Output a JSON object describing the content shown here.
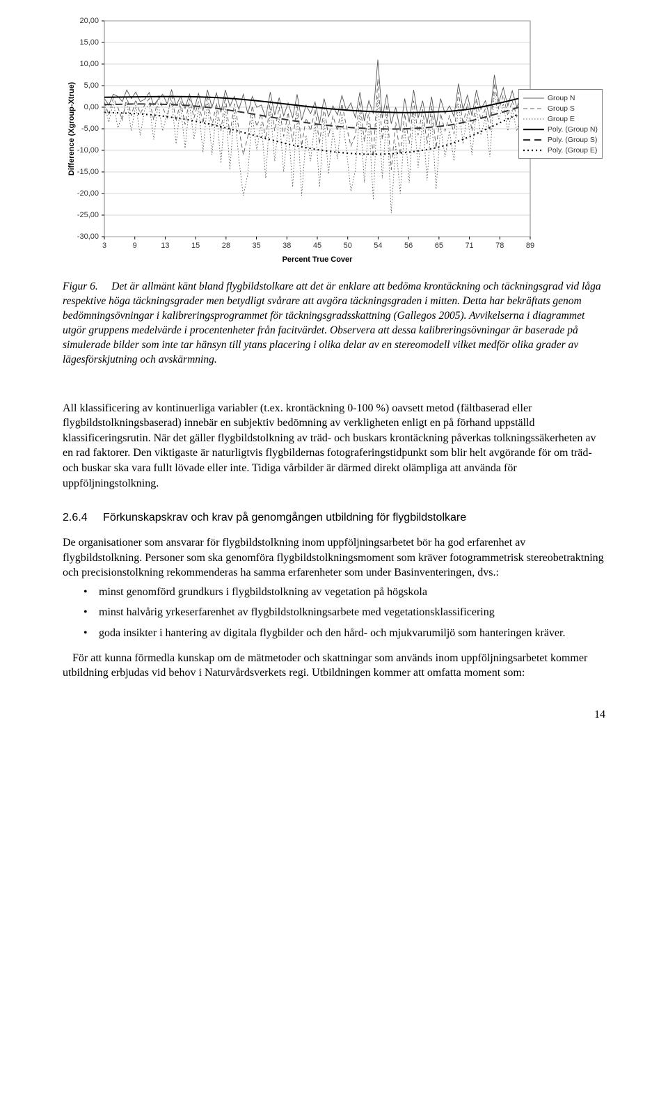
{
  "chart": {
    "type": "line",
    "ylabel": "Difference (Xgroup-Xtrue)",
    "xlabel": "Percent True Cover",
    "ylim": [
      -30,
      20
    ],
    "yticks": [
      -30,
      -25,
      -20,
      -15,
      -10,
      -5,
      0,
      5,
      10,
      15,
      20
    ],
    "ytick_labels": [
      "-30,00",
      "-25,00",
      "-20,00",
      "-15,00",
      "-10,00",
      "-5,00",
      "0,00",
      "5,00",
      "10,00",
      "15,00",
      "20,00"
    ],
    "xticks": [
      3,
      9,
      13,
      15,
      28,
      35,
      38,
      45,
      50,
      54,
      56,
      65,
      71,
      78,
      89
    ],
    "plot_bg": "#ffffff",
    "page_bg": "#ffffff",
    "axis_color": "#000000",
    "grid_color": "#b0b0b0",
    "label_fontsize": 11,
    "axis_title_fontsize": 11,
    "axis_title_weight": "bold",
    "line_stroke": "#555555",
    "line_width_jagged": 0.9,
    "line_width_poly": 2.0,
    "legend": [
      {
        "label": "Group N",
        "style": "solid-thin",
        "color": "#666666"
      },
      {
        "label": "Group S",
        "style": "dash-thin",
        "color": "#666666"
      },
      {
        "label": "Group E",
        "style": "dot-thin",
        "color": "#666666"
      },
      {
        "label": "Poly. (Group N)",
        "style": "solid-thick",
        "color": "#000000"
      },
      {
        "label": "Poly. (Group S)",
        "style": "dash-thick",
        "color": "#333333"
      },
      {
        "label": "Poly. (Group E)",
        "style": "dot-thick",
        "color": "#000000"
      }
    ],
    "series_N": [
      [
        0,
        2
      ],
      [
        6,
        0.5
      ],
      [
        12,
        3
      ],
      [
        18,
        2.5
      ],
      [
        24,
        1.3
      ],
      [
        30,
        4
      ],
      [
        36,
        2
      ],
      [
        42,
        3.5
      ],
      [
        48,
        1.3
      ],
      [
        54,
        1.8
      ],
      [
        60,
        3.4
      ],
      [
        66,
        0.5
      ],
      [
        72,
        1.8
      ],
      [
        78,
        3
      ],
      [
        84,
        0.8
      ],
      [
        90,
        4
      ],
      [
        96,
        0.4
      ],
      [
        102,
        2.5
      ],
      [
        108,
        -0.3
      ],
      [
        114,
        3
      ],
      [
        120,
        -0.6
      ],
      [
        126,
        3.2
      ],
      [
        132,
        -0.8
      ],
      [
        138,
        4
      ],
      [
        144,
        0
      ],
      [
        150,
        3.3
      ],
      [
        156,
        -1.2
      ],
      [
        162,
        4
      ],
      [
        168,
        0.2
      ],
      [
        174,
        2.5
      ],
      [
        180,
        -0.5
      ],
      [
        186,
        3
      ],
      [
        192,
        -1.5
      ],
      [
        198,
        2.5
      ],
      [
        204,
        0
      ],
      [
        210,
        0.5
      ],
      [
        216,
        -2.5
      ],
      [
        222,
        3.5
      ],
      [
        228,
        -1.8
      ],
      [
        234,
        2.2
      ],
      [
        240,
        -2
      ],
      [
        246,
        1
      ],
      [
        252,
        -2.5
      ],
      [
        258,
        3
      ],
      [
        264,
        -3
      ],
      [
        270,
        0.5
      ],
      [
        276,
        -1.5
      ],
      [
        282,
        1.2
      ],
      [
        288,
        -3.8
      ],
      [
        294,
        2
      ],
      [
        300,
        -2.2
      ],
      [
        306,
        0.3
      ],
      [
        312,
        -1.8
      ],
      [
        318,
        2.7
      ],
      [
        324,
        -0.8
      ],
      [
        330,
        1
      ],
      [
        336,
        -2.5
      ],
      [
        342,
        3.5
      ],
      [
        348,
        -3.2
      ],
      [
        354,
        1.5
      ],
      [
        360,
        -1.5
      ],
      [
        366,
        11
      ],
      [
        372,
        -2.5
      ],
      [
        378,
        3
      ],
      [
        384,
        -3.8
      ],
      [
        390,
        0
      ],
      [
        396,
        -5.5
      ],
      [
        402,
        2
      ],
      [
        408,
        -3.5
      ],
      [
        414,
        4
      ],
      [
        420,
        -2.5
      ],
      [
        426,
        1.5
      ],
      [
        432,
        -3.8
      ],
      [
        438,
        2.4
      ],
      [
        444,
        -4.5
      ],
      [
        450,
        2
      ],
      [
        456,
        -1.5
      ],
      [
        462,
        0.3
      ],
      [
        468,
        -2.2
      ],
      [
        474,
        5.5
      ],
      [
        480,
        -0.5
      ],
      [
        486,
        2.8
      ],
      [
        492,
        -2
      ],
      [
        498,
        4
      ],
      [
        504,
        -0.5
      ],
      [
        510,
        1.5
      ],
      [
        516,
        -2.5
      ],
      [
        522,
        7.5
      ],
      [
        528,
        1.2
      ],
      [
        534,
        4.5
      ],
      [
        540,
        0.3
      ],
      [
        546,
        3.8
      ],
      [
        552,
        0
      ],
      [
        558,
        2.5
      ],
      [
        564,
        0.8
      ],
      [
        570,
        1.6
      ]
    ],
    "series_S": [
      [
        0,
        1.2
      ],
      [
        6,
        -1.8
      ],
      [
        12,
        2.2
      ],
      [
        18,
        0
      ],
      [
        24,
        -3
      ],
      [
        30,
        2.5
      ],
      [
        36,
        -2
      ],
      [
        42,
        1.8
      ],
      [
        48,
        -1.5
      ],
      [
        54,
        0.5
      ],
      [
        60,
        2
      ],
      [
        66,
        -3
      ],
      [
        72,
        2.5
      ],
      [
        78,
        0
      ],
      [
        84,
        -2.5
      ],
      [
        90,
        3
      ],
      [
        96,
        -3.3
      ],
      [
        102,
        1.5
      ],
      [
        108,
        -4
      ],
      [
        114,
        2
      ],
      [
        120,
        -2.5
      ],
      [
        126,
        1.3
      ],
      [
        132,
        -3.8
      ],
      [
        138,
        2.8
      ],
      [
        144,
        -4.5
      ],
      [
        150,
        1
      ],
      [
        156,
        -5.5
      ],
      [
        162,
        2.5
      ],
      [
        168,
        -6.5
      ],
      [
        174,
        0.8
      ],
      [
        180,
        -5
      ],
      [
        186,
        -11
      ],
      [
        192,
        -6.8
      ],
      [
        198,
        0.3
      ],
      [
        204,
        -4.5
      ],
      [
        210,
        -1.5
      ],
      [
        216,
        -7.5
      ],
      [
        222,
        1.5
      ],
      [
        228,
        -5.5
      ],
      [
        234,
        0
      ],
      [
        240,
        -6.8
      ],
      [
        246,
        -1.2
      ],
      [
        252,
        -8
      ],
      [
        258,
        0.8
      ],
      [
        264,
        -9
      ],
      [
        270,
        -2.5
      ],
      [
        276,
        -5.5
      ],
      [
        282,
        -0.5
      ],
      [
        288,
        -8.5
      ],
      [
        294,
        0
      ],
      [
        300,
        -6.8
      ],
      [
        306,
        -2
      ],
      [
        312,
        -5.5
      ],
      [
        318,
        0.8
      ],
      [
        324,
        -4.5
      ],
      [
        330,
        -9
      ],
      [
        336,
        -6.5
      ],
      [
        342,
        1.5
      ],
      [
        348,
        -8
      ],
      [
        354,
        -0.8
      ],
      [
        360,
        -11.5
      ],
      [
        366,
        6.5
      ],
      [
        372,
        -7.5
      ],
      [
        378,
        0.7
      ],
      [
        384,
        -14.5
      ],
      [
        390,
        -3.5
      ],
      [
        396,
        -11
      ],
      [
        402,
        -1.5
      ],
      [
        408,
        -8.5
      ],
      [
        414,
        1.5
      ],
      [
        420,
        -6.5
      ],
      [
        426,
        -0.5
      ],
      [
        432,
        -8.5
      ],
      [
        438,
        0.3
      ],
      [
        444,
        -9.5
      ],
      [
        450,
        -1.5
      ],
      [
        456,
        -5.5
      ],
      [
        462,
        -2
      ],
      [
        468,
        -6.2
      ],
      [
        474,
        3.5
      ],
      [
        480,
        -4
      ],
      [
        486,
        0.8
      ],
      [
        492,
        -5.5
      ],
      [
        498,
        2
      ],
      [
        504,
        -3
      ],
      [
        510,
        -0.3
      ],
      [
        516,
        -5.5
      ],
      [
        522,
        5.5
      ],
      [
        528,
        -0.5
      ],
      [
        534,
        2.8
      ],
      [
        540,
        -2
      ],
      [
        546,
        1.5
      ],
      [
        552,
        -2.2
      ],
      [
        558,
        0.8
      ],
      [
        564,
        -0.7
      ],
      [
        570,
        0.5
      ]
    ],
    "series_E": [
      [
        0,
        0.7
      ],
      [
        6,
        -3.5
      ],
      [
        12,
        1.2
      ],
      [
        18,
        -4.8
      ],
      [
        24,
        -2
      ],
      [
        30,
        1.2
      ],
      [
        36,
        -5.5
      ],
      [
        42,
        0.5
      ],
      [
        48,
        -6.5
      ],
      [
        54,
        -0.5
      ],
      [
        60,
        0.8
      ],
      [
        66,
        -7.5
      ],
      [
        72,
        1
      ],
      [
        78,
        -5.5
      ],
      [
        84,
        -1.5
      ],
      [
        90,
        1.5
      ],
      [
        96,
        -8.5
      ],
      [
        102,
        0.3
      ],
      [
        108,
        -9.5
      ],
      [
        114,
        0.8
      ],
      [
        120,
        -7.5
      ],
      [
        126,
        0
      ],
      [
        132,
        -10.5
      ],
      [
        138,
        1.3
      ],
      [
        144,
        -11
      ],
      [
        150,
        -0.7
      ],
      [
        156,
        -13
      ],
      [
        162,
        0.8
      ],
      [
        168,
        -14.5
      ],
      [
        174,
        -0.4
      ],
      [
        180,
        -12
      ],
      [
        186,
        -20.5
      ],
      [
        192,
        -15.5
      ],
      [
        198,
        -1.8
      ],
      [
        204,
        -10
      ],
      [
        210,
        -3.5
      ],
      [
        216,
        -16.5
      ],
      [
        222,
        -0.2
      ],
      [
        228,
        -12.5
      ],
      [
        234,
        -2.2
      ],
      [
        240,
        -15
      ],
      [
        246,
        -4
      ],
      [
        252,
        -18.5
      ],
      [
        258,
        -1.3
      ],
      [
        264,
        -20.5
      ],
      [
        270,
        -6.5
      ],
      [
        276,
        -12.5
      ],
      [
        282,
        -3.2
      ],
      [
        288,
        -18.5
      ],
      [
        294,
        -2.5
      ],
      [
        300,
        -15.5
      ],
      [
        306,
        -5.5
      ],
      [
        312,
        -12
      ],
      [
        318,
        -1.5
      ],
      [
        324,
        -10
      ],
      [
        330,
        -19.5
      ],
      [
        336,
        -14.5
      ],
      [
        342,
        -0.5
      ],
      [
        348,
        -17.5
      ],
      [
        354,
        -3.5
      ],
      [
        360,
        -21.5
      ],
      [
        366,
        2.5
      ],
      [
        372,
        -16.5
      ],
      [
        378,
        -1.5
      ],
      [
        384,
        -24.5
      ],
      [
        390,
        -8.5
      ],
      [
        396,
        -20
      ],
      [
        402,
        -4.5
      ],
      [
        408,
        -17.5
      ],
      [
        414,
        -1
      ],
      [
        420,
        -14
      ],
      [
        426,
        -3
      ],
      [
        432,
        -17
      ],
      [
        438,
        -2
      ],
      [
        444,
        -19
      ],
      [
        450,
        -4.5
      ],
      [
        456,
        -11.5
      ],
      [
        462,
        -5.5
      ],
      [
        468,
        -12.5
      ],
      [
        474,
        1
      ],
      [
        480,
        -8.5
      ],
      [
        486,
        -1.5
      ],
      [
        492,
        -11
      ],
      [
        498,
        -0.3
      ],
      [
        504,
        -6.5
      ],
      [
        510,
        -2.5
      ],
      [
        516,
        -11.5
      ],
      [
        522,
        3.5
      ],
      [
        528,
        -3
      ],
      [
        534,
        0.8
      ],
      [
        540,
        -5.5
      ],
      [
        546,
        -0.5
      ],
      [
        552,
        -5.5
      ],
      [
        558,
        -1.5
      ],
      [
        564,
        -3
      ],
      [
        570,
        -0.3
      ]
    ],
    "poly_N": [
      [
        0,
        2.3
      ],
      [
        50,
        2.4
      ],
      [
        100,
        2.5
      ],
      [
        150,
        2.3
      ],
      [
        200,
        1.6
      ],
      [
        250,
        0.6
      ],
      [
        300,
        -0.4
      ],
      [
        350,
        -1
      ],
      [
        400,
        -1.3
      ],
      [
        450,
        -1.1
      ],
      [
        480,
        -0.7
      ],
      [
        510,
        0.2
      ],
      [
        540,
        1.4
      ],
      [
        570,
        2.7
      ]
    ],
    "poly_S": [
      [
        0,
        0.6
      ],
      [
        50,
        0.8
      ],
      [
        100,
        0.6
      ],
      [
        150,
        -0.2
      ],
      [
        200,
        -1.6
      ],
      [
        250,
        -3.1
      ],
      [
        300,
        -4.3
      ],
      [
        350,
        -5
      ],
      [
        400,
        -5.1
      ],
      [
        450,
        -4.5
      ],
      [
        480,
        -3.6
      ],
      [
        510,
        -2.3
      ],
      [
        540,
        -0.8
      ],
      [
        570,
        0.8
      ]
    ],
    "poly_E": [
      [
        0,
        -1.2
      ],
      [
        50,
        -1.5
      ],
      [
        100,
        -2.5
      ],
      [
        150,
        -4.2
      ],
      [
        200,
        -6.5
      ],
      [
        250,
        -8.8
      ],
      [
        300,
        -10.3
      ],
      [
        350,
        -11
      ],
      [
        400,
        -10.7
      ],
      [
        450,
        -9.3
      ],
      [
        480,
        -7.5
      ],
      [
        510,
        -5.2
      ],
      [
        540,
        -2.7
      ],
      [
        570,
        -0.4
      ]
    ]
  },
  "caption_label": "Figur 6.",
  "caption_text": "Det är allmänt känt bland flygbildstolkare att det är enklare att bedöma krontäckning och täckningsgrad vid låga respektive höga täckningsgrader men betydligt svårare att avgöra täckningsgraden i mitten. Detta har bekräftats genom bedömningsövningar i kalibreringsprogrammet för täckningsgrads­skattning (Gallegos 2005). Avvikelserna i diagrammet utgör gruppens medelvärde i procentenheter från facitvärdet. Observera att dessa kalibreringsövningar är baserade på simulerade bilder som inte tar hänsyn till ytans placering i olika delar av en stereomodell vilket medför olika grader av lägesförskjutning och avskärmning.",
  "body1": "All klassificering av kontinuerliga variabler (t.ex. krontäckning 0-100 %) oavsett metod (fältbaserad eller flygbildstolkningsbaserad) innebär en subjektiv bedömning av verkligheten enligt en på förhand uppställd klassificeringsrutin. När det gäller flygbildstolkning av träd- och buskars krontäckning påverkas tolkningssäkerheten av en rad faktorer. Den viktigaste är naturligtvis flygbildernas fotograferingstidpunkt som blir helt avgörande för om träd- och buskar ska vara fullt lövade eller inte. Tidiga vårbilder är därmed direkt olämpliga att använda för uppföljningstolkning.",
  "section_num": "2.6.4",
  "section_title": "Förkunskapskrav och krav på genomgången utbildning för flygbildstolkare",
  "body2": "De organisationer som ansvarar för flygbildstolkning inom uppföljningsarbetet bör ha god erfarenhet av flygbildstolkning. Personer som ska genomföra flygbildstolkningsmoment som kräver fotogrammetrisk stereobetraktning och precisionstolkning rekommenderas ha samma erfarenheter som under Basinventeringen, dvs.:",
  "bullets": [
    "minst genomförd grundkurs i flygbildstolkning av vegetation på högskola",
    "minst halvårig yrkeserfarenhet av flygbildstolkningsarbete med vegetationsklassificering",
    "goda insikter i hantering av digitala flygbilder och den hård- och mjukvarumiljö som hanteringen kräver."
  ],
  "body3": "För att kunna förmedla kunskap om de mätmetoder och skattningar som används inom uppföljningsarbetet kommer utbildning erbjudas vid behov i Naturvårdsverkets regi. Utbildningen kommer att omfatta moment som:",
  "page_number": "14"
}
